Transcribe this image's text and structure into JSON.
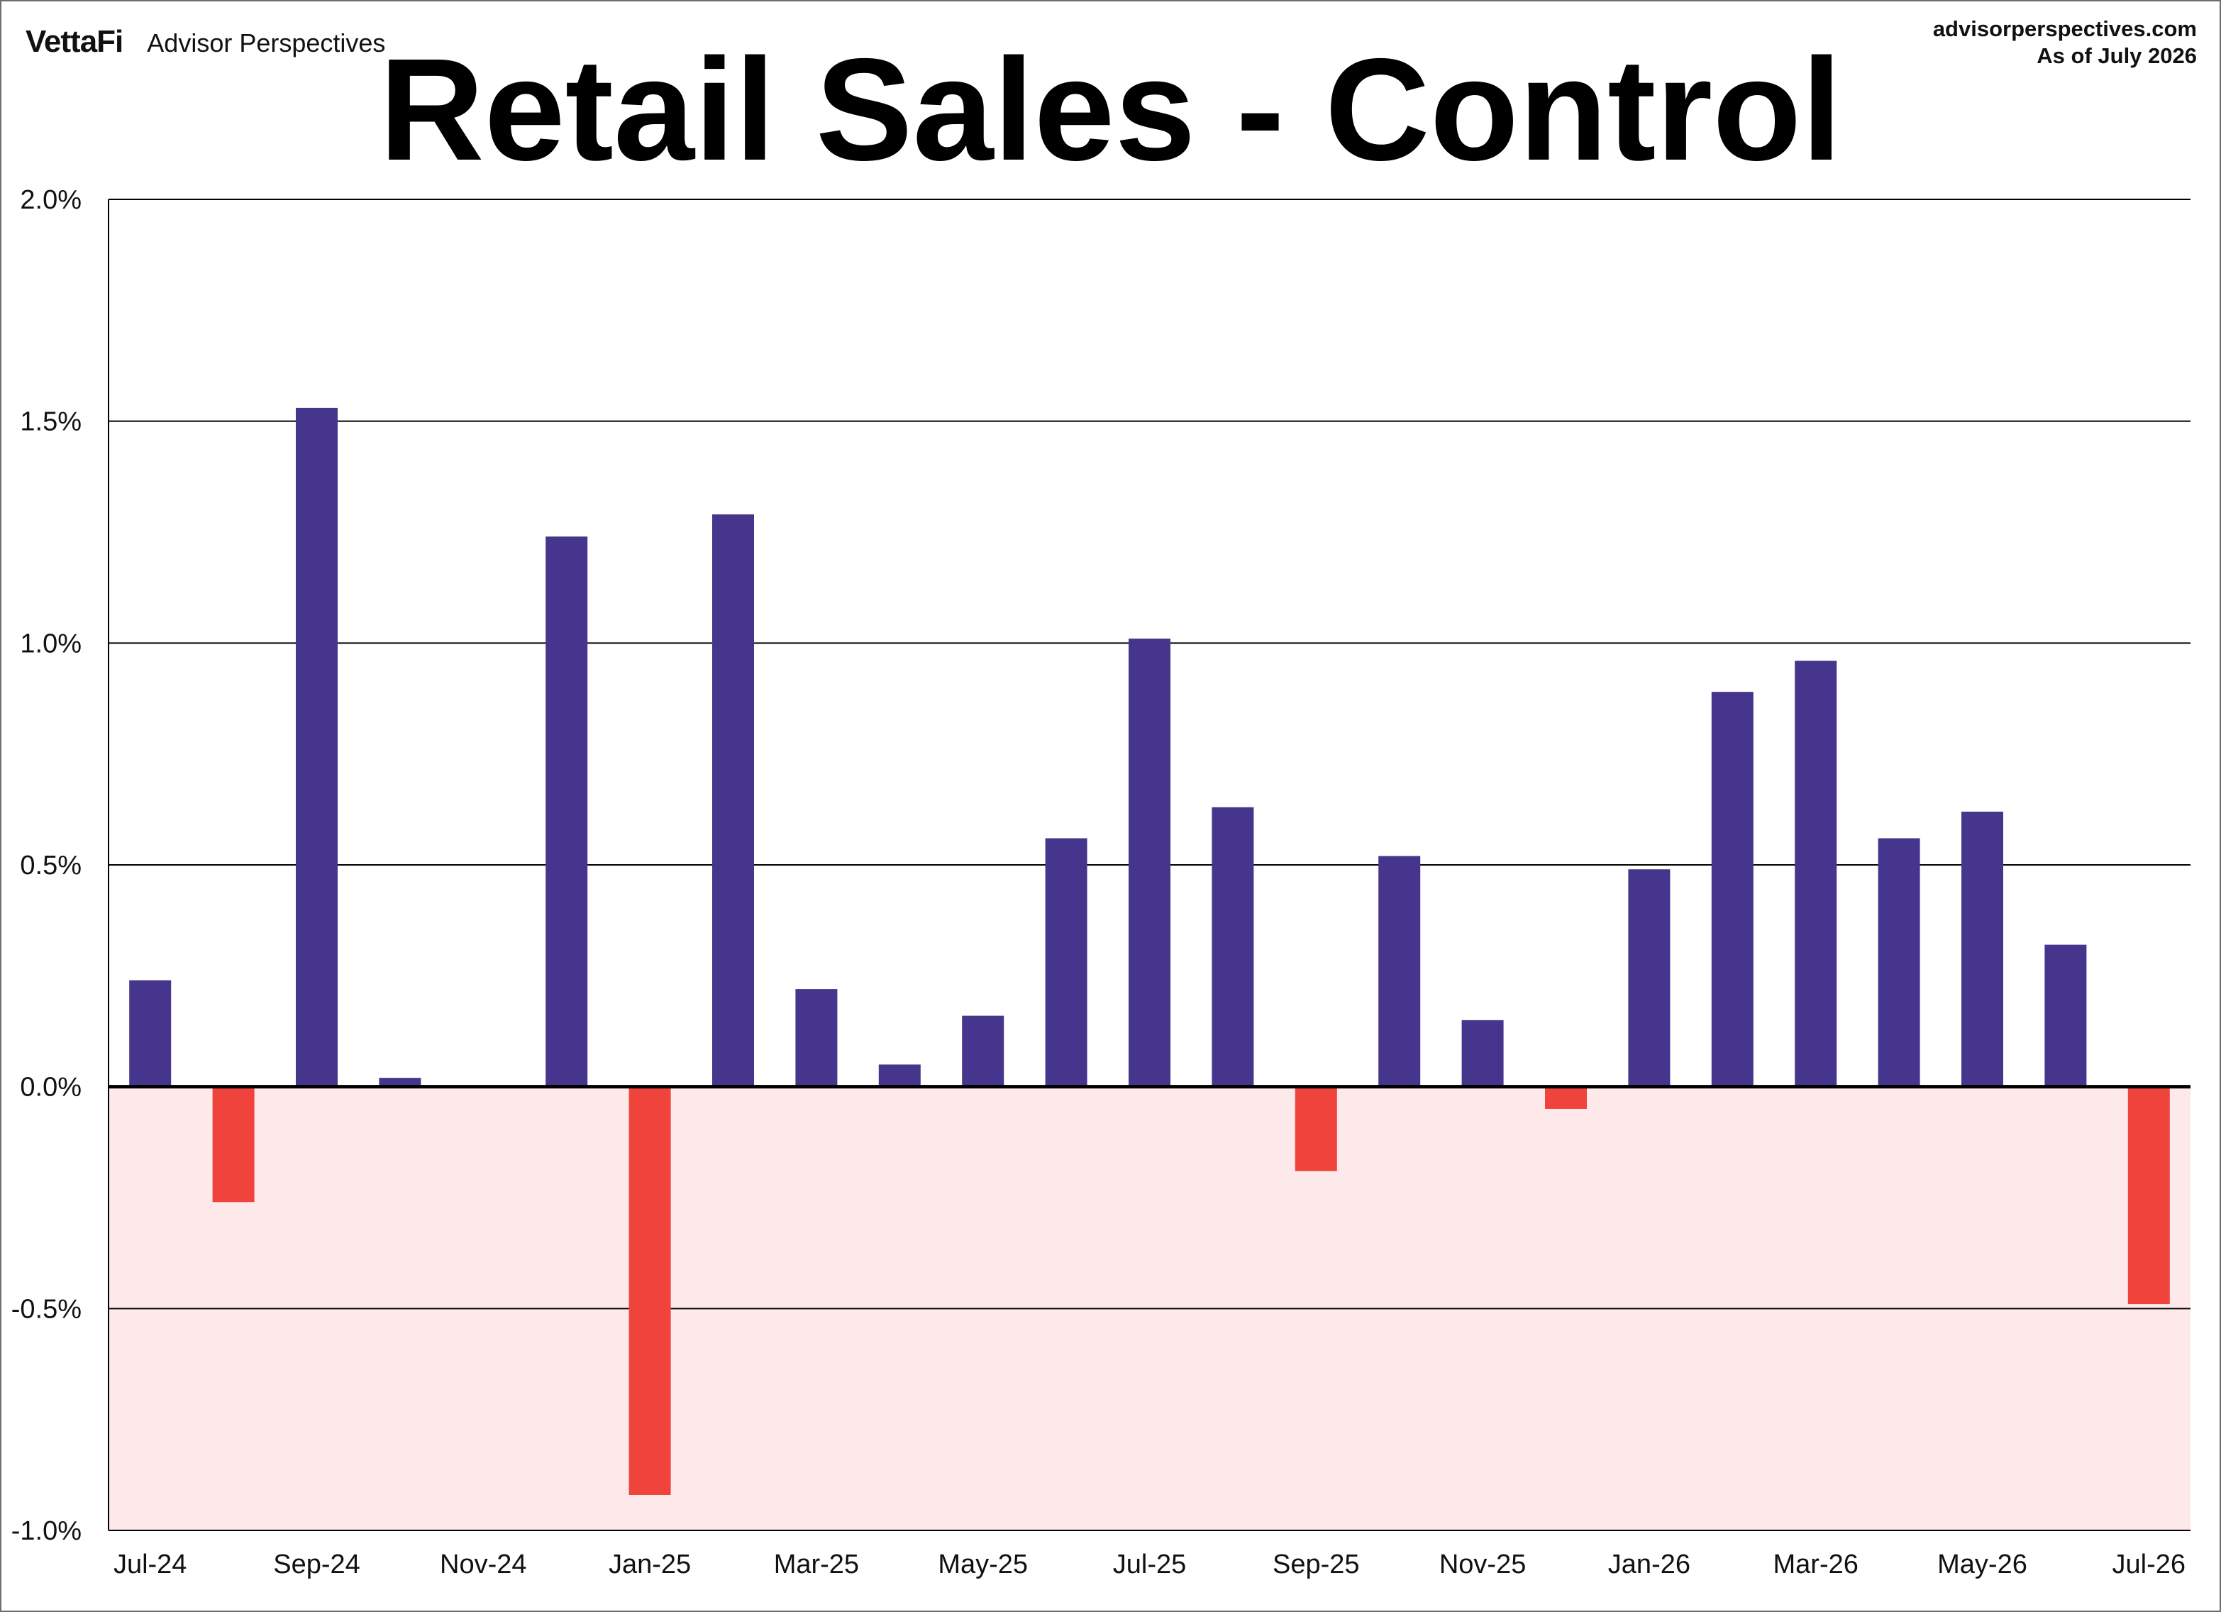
{
  "header": {
    "brand_logo": "VettaFi",
    "brand_name": "Advisor Perspectives",
    "source": "advisorperspectives.com",
    "as_of": "As of July 2026"
  },
  "chart_data": {
    "type": "bar",
    "title": "Retail Sales - Control",
    "xlabel": "",
    "ylabel": "",
    "ylim": [
      -1.0,
      2.0
    ],
    "yticks": [
      2.0,
      1.5,
      1.0,
      0.5,
      0.0,
      -0.5,
      -1.0
    ],
    "ytick_labels": [
      "2.0%",
      "1.5%",
      "1.0%",
      "0.5%",
      "0.0%",
      "-0.5%",
      "-1.0%"
    ],
    "grid": true,
    "categories": [
      "Jul-24",
      "Aug-24",
      "Sep-24",
      "Oct-24",
      "Nov-24",
      "Dec-24",
      "Jan-25",
      "Feb-25",
      "Mar-25",
      "Apr-25",
      "May-25",
      "Jun-25",
      "Jul-25",
      "Aug-25",
      "Sep-25",
      "Oct-25",
      "Nov-25",
      "Dec-25",
      "Jan-26",
      "Feb-26",
      "Mar-26",
      "Apr-26",
      "May-26",
      "Jun-26",
      "Jul-26"
    ],
    "xtick_labels": [
      "Jul-24",
      "Sep-24",
      "Nov-24",
      "Jan-25",
      "Mar-25",
      "May-25",
      "Jul-25",
      "Sep-25",
      "Nov-25",
      "Jan-26",
      "Mar-26",
      "May-26",
      "Jul-26"
    ],
    "values": [
      0.24,
      -0.26,
      1.53,
      0.02,
      0.0,
      1.24,
      -0.92,
      1.29,
      0.22,
      0.05,
      0.16,
      0.56,
      1.01,
      0.63,
      -0.19,
      0.52,
      0.15,
      -0.05,
      0.49,
      0.89,
      0.96,
      0.56,
      0.62,
      0.32,
      -0.49
    ],
    "colors": {
      "positive": "#46358c",
      "negative": "#f0433c",
      "negative_region": "#fde9e9",
      "axis": "#000000"
    }
  }
}
